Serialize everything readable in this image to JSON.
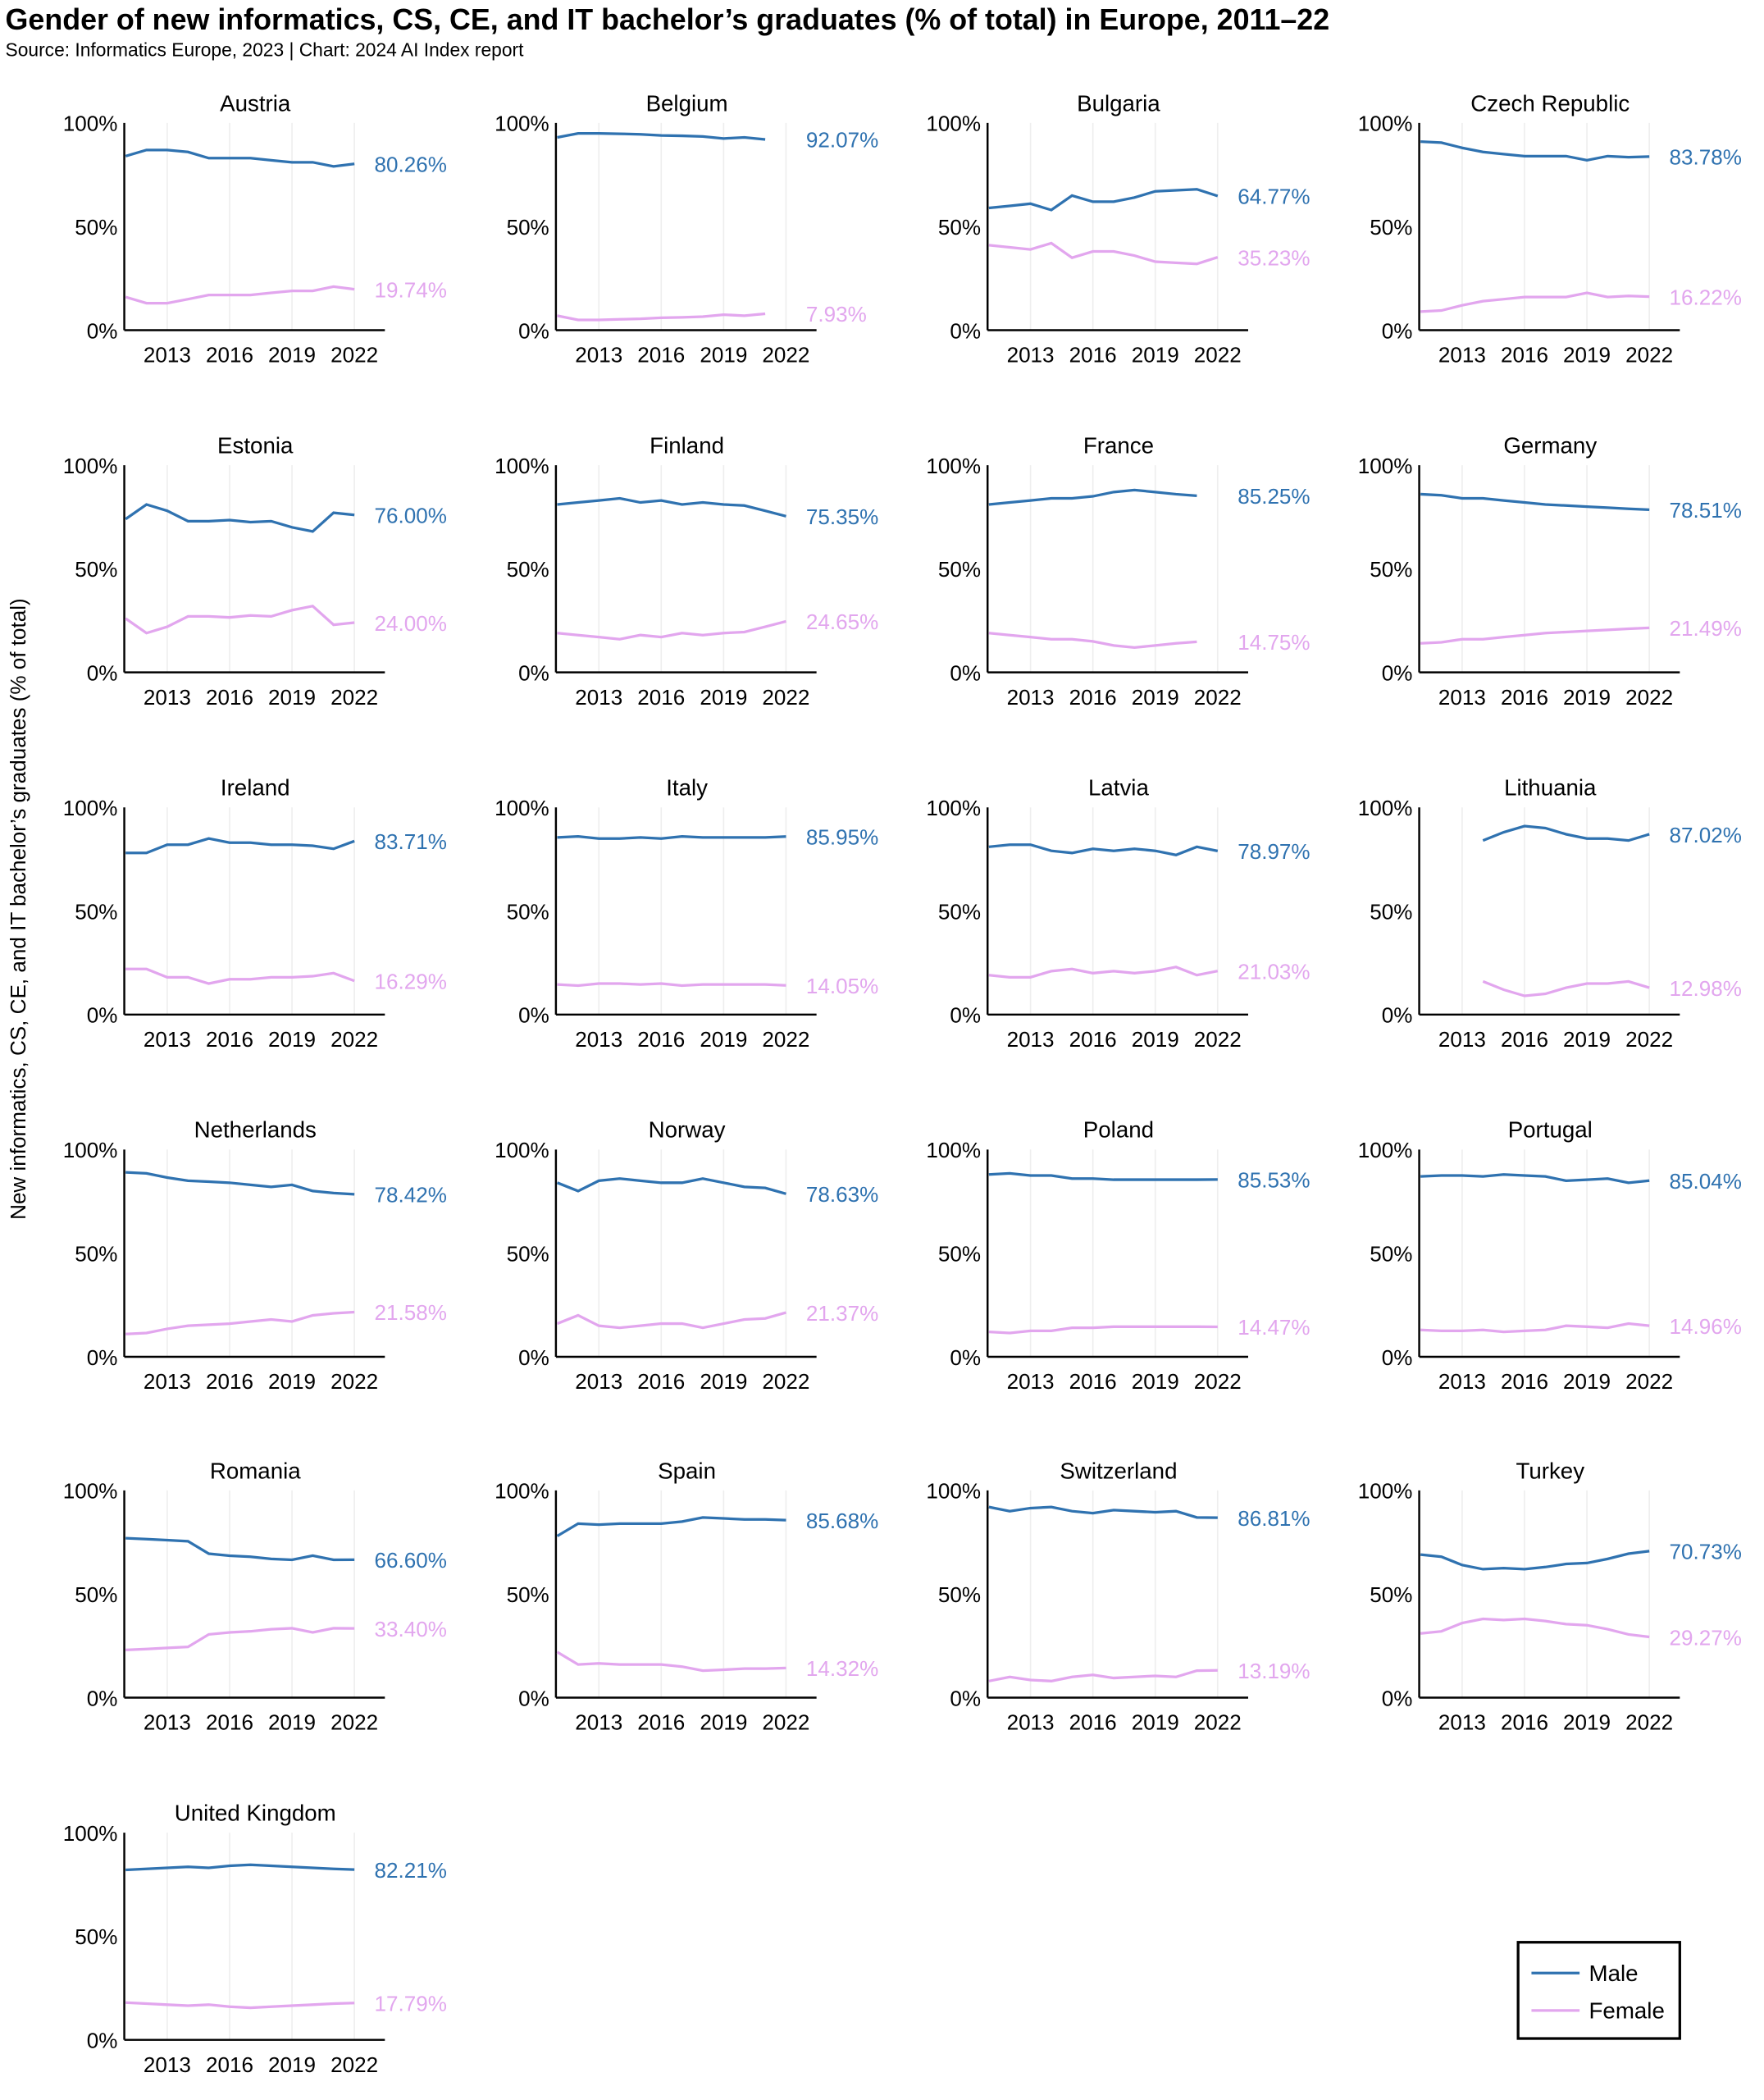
{
  "chart_data": {
    "type": "line",
    "title": "Gender of new informatics, CS, CE, and IT bachelor’s graduates (% of total) in Europe, 2011–22",
    "subtitle": "Source: Informatics Europe, 2023 | Chart: 2024 AI Index report",
    "ylabel": "New informatics, CS, CE, and IT bachelor’s graduates (% of total)",
    "x": [
      2011,
      2012,
      2013,
      2014,
      2015,
      2016,
      2017,
      2018,
      2019,
      2020,
      2021,
      2022
    ],
    "xticks": [
      "2013",
      "2016",
      "2019",
      "2022"
    ],
    "yticks": [
      "0%",
      "50%",
      "100%"
    ],
    "ylim": [
      0,
      100
    ],
    "legend": {
      "placement": "bottom-right",
      "entries": [
        {
          "name": "Male",
          "color": "#2f72b0"
        },
        {
          "name": "Female",
          "color": "#e2a6ee"
        }
      ]
    },
    "panels": [
      {
        "country": "Austria",
        "male": [
          84,
          87,
          87,
          86,
          83,
          83,
          83,
          82,
          81,
          81,
          79,
          80.26
        ],
        "female": [
          16,
          13,
          13,
          15,
          17,
          17,
          17,
          18,
          19,
          19,
          21,
          19.74
        ],
        "male_label": "80.26%",
        "female_label": "19.74%"
      },
      {
        "country": "Belgium",
        "male": [
          93,
          95,
          95,
          94.8,
          94.5,
          94,
          93.8,
          93.5,
          92.5,
          93,
          92.07,
          null
        ],
        "female": [
          7,
          5,
          5,
          5.2,
          5.5,
          6,
          6.2,
          6.5,
          7.5,
          7,
          7.93,
          null
        ],
        "male_label": "92.07%",
        "female_label": "7.93%"
      },
      {
        "country": "Bulgaria",
        "male": [
          59,
          60,
          61,
          58,
          65,
          62,
          62,
          64,
          67,
          67.5,
          68,
          64.77
        ],
        "female": [
          41,
          40,
          39,
          42,
          35,
          38,
          38,
          36,
          33,
          32.5,
          32,
          35.23
        ],
        "male_label": "64.77%",
        "female_label": "35.23%"
      },
      {
        "country": "Czech Republic",
        "male": [
          91,
          90.5,
          88,
          86,
          85,
          84,
          84,
          84,
          82,
          84,
          83.5,
          83.78
        ],
        "female": [
          9,
          9.5,
          12,
          14,
          15,
          16,
          16,
          16,
          18,
          16,
          16.5,
          16.22
        ],
        "male_label": "83.78%",
        "female_label": "16.22%"
      },
      {
        "country": "Estonia",
        "male": [
          74,
          81,
          78,
          73,
          73,
          73.5,
          72.5,
          73,
          70,
          68,
          77,
          76.0
        ],
        "female": [
          26,
          19,
          22,
          27,
          27,
          26.5,
          27.5,
          27,
          30,
          32,
          23,
          24.0
        ],
        "male_label": "76.00%",
        "female_label": "24.00%"
      },
      {
        "country": "Finland",
        "male": [
          81,
          82,
          83,
          84,
          82,
          83,
          81,
          82,
          81,
          80.5,
          78,
          75.35
        ],
        "female": [
          19,
          18,
          17,
          16,
          18,
          17,
          19,
          18,
          19,
          19.5,
          22,
          24.65
        ],
        "male_label": "75.35%",
        "female_label": "24.65%"
      },
      {
        "country": "France",
        "male": [
          81,
          82,
          83,
          84,
          84,
          85,
          87,
          88,
          87,
          86,
          85.25,
          null
        ],
        "female": [
          19,
          18,
          17,
          16,
          16,
          15,
          13,
          12,
          13,
          14,
          14.75,
          null
        ],
        "male_label": "85.25%",
        "female_label": "14.75%"
      },
      {
        "country": "Germany",
        "male": [
          86,
          85.5,
          84,
          84,
          83,
          82,
          81,
          80.5,
          80,
          79.5,
          79,
          78.51
        ],
        "female": [
          14,
          14.5,
          16,
          16,
          17,
          18,
          19,
          19.5,
          20,
          20.5,
          21,
          21.49
        ],
        "male_label": "78.51%",
        "female_label": "21.49%"
      },
      {
        "country": "Ireland",
        "male": [
          78,
          78,
          82,
          82,
          85,
          83,
          83,
          82,
          82,
          81.5,
          80,
          83.71
        ],
        "female": [
          22,
          22,
          18,
          18,
          15,
          17,
          17,
          18,
          18,
          18.5,
          20,
          16.29
        ],
        "male_label": "83.71%",
        "female_label": "16.29%"
      },
      {
        "country": "Italy",
        "male": [
          85.5,
          86,
          85,
          85,
          85.5,
          85,
          86,
          85.5,
          85.5,
          85.5,
          85.5,
          85.95
        ],
        "female": [
          14.5,
          14,
          15,
          15,
          14.5,
          15,
          14,
          14.5,
          14.5,
          14.5,
          14.5,
          14.05
        ],
        "male_label": "85.95%",
        "female_label": "14.05%"
      },
      {
        "country": "Latvia",
        "male": [
          81,
          82,
          82,
          79,
          78,
          80,
          79,
          80,
          79,
          77,
          81,
          78.97
        ],
        "female": [
          19,
          18,
          18,
          21,
          22,
          20,
          21,
          20,
          21,
          23,
          19,
          21.03
        ],
        "male_label": "78.97%",
        "female_label": "21.03%"
      },
      {
        "country": "Lithuania",
        "male": [
          null,
          null,
          null,
          84,
          88,
          91,
          90,
          87,
          85,
          85,
          84,
          87.02
        ],
        "female": [
          null,
          null,
          null,
          16,
          12,
          9,
          10,
          13,
          15,
          15,
          16,
          12.98
        ],
        "male_label": "87.02%",
        "female_label": "12.98%"
      },
      {
        "country": "Netherlands",
        "male": [
          89,
          88.5,
          86.5,
          85,
          84.5,
          84,
          83,
          82,
          83,
          80,
          79,
          78.42
        ],
        "female": [
          11,
          11.5,
          13.5,
          15,
          15.5,
          16,
          17,
          18,
          17,
          20,
          21,
          21.58
        ],
        "male_label": "78.42%",
        "female_label": "21.58%"
      },
      {
        "country": "Norway",
        "male": [
          84,
          80,
          85,
          86,
          85,
          84,
          84,
          86,
          84,
          82,
          81.5,
          78.63
        ],
        "female": [
          16,
          20,
          15,
          14,
          15,
          16,
          16,
          14,
          16,
          18,
          18.5,
          21.37
        ],
        "male_label": "78.63%",
        "female_label": "21.37%"
      },
      {
        "country": "Poland",
        "male": [
          88,
          88.5,
          87.5,
          87.5,
          86,
          86,
          85.5,
          85.5,
          85.5,
          85.5,
          85.5,
          85.53
        ],
        "female": [
          12,
          11.5,
          12.5,
          12.5,
          14,
          14,
          14.5,
          14.5,
          14.5,
          14.5,
          14.5,
          14.47
        ],
        "male_label": "85.53%",
        "female_label": "14.47%"
      },
      {
        "country": "Portugal",
        "male": [
          87,
          87.5,
          87.5,
          87,
          88,
          87.5,
          87,
          85,
          85.5,
          86,
          84,
          85.04
        ],
        "female": [
          13,
          12.5,
          12.5,
          13,
          12,
          12.5,
          13,
          15,
          14.5,
          14,
          16,
          14.96
        ],
        "male_label": "85.04%",
        "female_label": "14.96%"
      },
      {
        "country": "Romania",
        "male": [
          77,
          76.5,
          76,
          75.5,
          69.5,
          68.5,
          68,
          67,
          66.5,
          68.5,
          66.5,
          66.6
        ],
        "female": [
          23,
          23.5,
          24,
          24.5,
          30.5,
          31.5,
          32,
          33,
          33.5,
          31.5,
          33.5,
          33.4
        ],
        "male_label": "66.60%",
        "female_label": "33.40%"
      },
      {
        "country": "Spain",
        "male": [
          78,
          84,
          83.5,
          84,
          84,
          84,
          85,
          87,
          86.5,
          86,
          86,
          85.68
        ],
        "female": [
          22,
          16,
          16.5,
          16,
          16,
          16,
          15,
          13,
          13.5,
          14,
          14,
          14.32
        ],
        "male_label": "85.68%",
        "female_label": "14.32%"
      },
      {
        "country": "Switzerland",
        "male": [
          92,
          90,
          91.5,
          92,
          90,
          89,
          90.5,
          90,
          89.5,
          90,
          87,
          86.81
        ],
        "female": [
          8,
          10,
          8.5,
          8,
          10,
          11,
          9.5,
          10,
          10.5,
          10,
          13,
          13.19
        ],
        "male_label": "86.81%",
        "female_label": "13.19%"
      },
      {
        "country": "Turkey",
        "male": [
          69,
          68,
          64,
          62,
          62.5,
          62,
          63,
          64.5,
          65,
          67,
          69.5,
          70.73
        ],
        "female": [
          31,
          32,
          36,
          38,
          37.5,
          38,
          37,
          35.5,
          35,
          33,
          30.5,
          29.27
        ],
        "male_label": "70.73%",
        "female_label": "29.27%"
      },
      {
        "country": "United Kingdom",
        "male": [
          82,
          82.5,
          83,
          83.5,
          83,
          84,
          84.5,
          84,
          83.5,
          83,
          82.5,
          82.21
        ],
        "female": [
          18,
          17.5,
          17,
          16.5,
          17,
          16,
          15.5,
          16,
          16.5,
          17,
          17.5,
          17.79
        ],
        "male_label": "82.21%",
        "female_label": "17.79%"
      }
    ]
  }
}
